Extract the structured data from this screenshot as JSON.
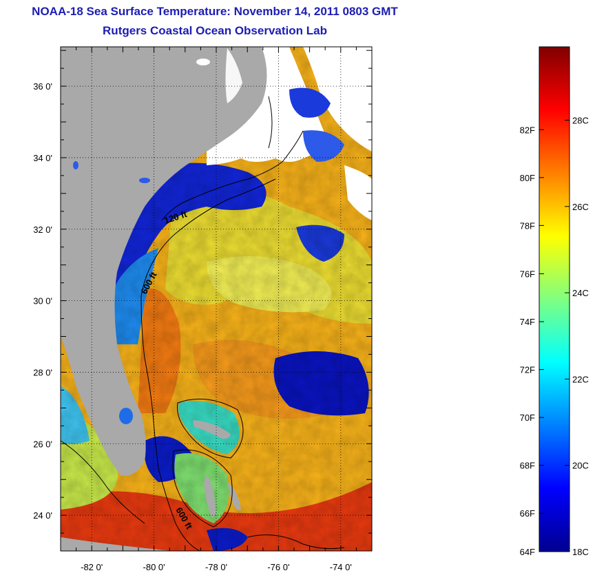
{
  "title": {
    "line1": "NOAA-18 Sea Surface Temperature:  November 14, 2011 0803 GMT",
    "line2": "Rutgers Coastal Ocean Observation Lab"
  },
  "map": {
    "lon_range": [
      -83,
      -73
    ],
    "lat_range": [
      23,
      37.1
    ],
    "lon_ticks": [
      {
        "value": -82,
        "label": "-82 0'"
      },
      {
        "value": -80,
        "label": "-80 0'"
      },
      {
        "value": -78,
        "label": "-78 0'"
      },
      {
        "value": -76,
        "label": "-76 0'"
      },
      {
        "value": -74,
        "label": "-74 0'"
      }
    ],
    "lat_ticks": [
      {
        "value": 24,
        "label": "24 0'"
      },
      {
        "value": 26,
        "label": "26 0'"
      },
      {
        "value": 28,
        "label": "28 0'"
      },
      {
        "value": 30,
        "label": "30 0'"
      },
      {
        "value": 32,
        "label": "32 0'"
      },
      {
        "value": 34,
        "label": "34 0'"
      },
      {
        "value": 36,
        "label": "36 0'"
      }
    ],
    "contour_labels": [
      "120 ft",
      "600 ft",
      "600 ft"
    ],
    "colors": {
      "land": "#a9a9a9",
      "cloud": "#ffffff"
    }
  },
  "colorbar": {
    "range_c": [
      18,
      29.7
    ],
    "colors": [
      "#00008f",
      "#0000ff",
      "#0080ff",
      "#00ffff",
      "#80ff80",
      "#ffff00",
      "#ff8000",
      "#ff0000",
      "#800000"
    ],
    "fahrenheit_labels": [
      {
        "value_c": 17.78,
        "label": "64F"
      },
      {
        "value_c": 18.89,
        "label": "66F"
      },
      {
        "value_c": 20.0,
        "label": "68F"
      },
      {
        "value_c": 21.11,
        "label": "70F"
      },
      {
        "value_c": 22.22,
        "label": "72F"
      },
      {
        "value_c": 23.33,
        "label": "74F"
      },
      {
        "value_c": 24.44,
        "label": "76F"
      },
      {
        "value_c": 25.56,
        "label": "78F"
      },
      {
        "value_c": 26.67,
        "label": "80F"
      },
      {
        "value_c": 27.78,
        "label": "82F"
      }
    ],
    "celsius_labels": [
      {
        "value_c": 18,
        "label": "18C"
      },
      {
        "value_c": 20,
        "label": "20C"
      },
      {
        "value_c": 22,
        "label": "22C"
      },
      {
        "value_c": 24,
        "label": "24C"
      },
      {
        "value_c": 26,
        "label": "26C"
      },
      {
        "value_c": 28,
        "label": "28C"
      }
    ]
  }
}
